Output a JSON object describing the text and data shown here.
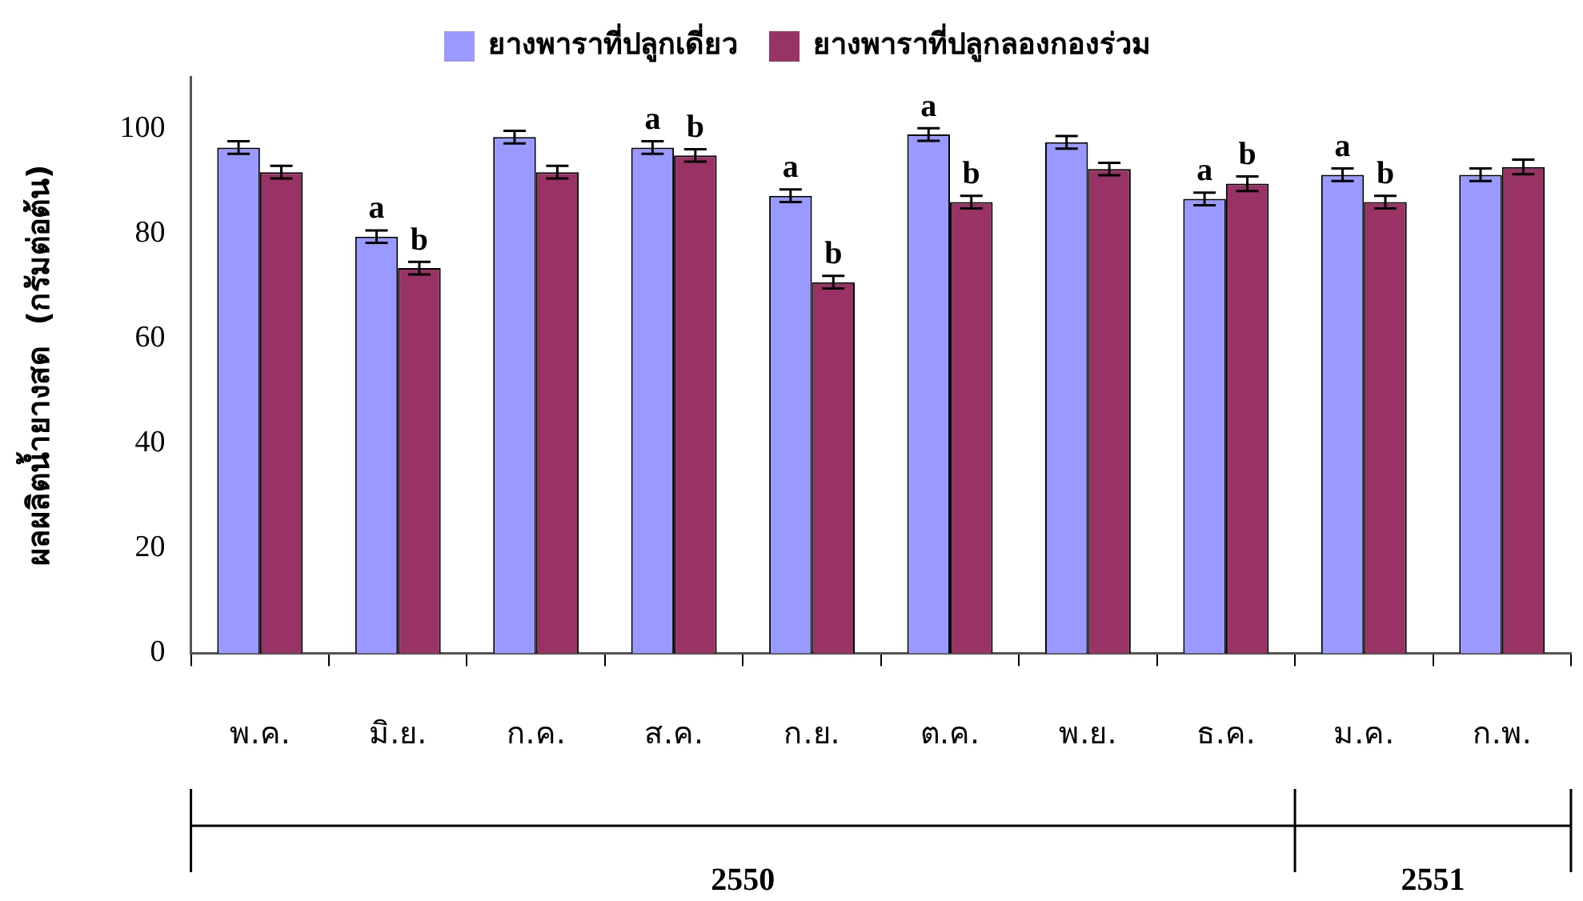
{
  "chart_data": {
    "type": "bar",
    "ylabel": "ผลผลิตน้ำยางสด  (กรัมต่อต้น)",
    "categories": [
      "พ.ค.",
      "มิ.ย.",
      "ก.ค.",
      "ส.ค.",
      "ก.ย.",
      "ต.ค.",
      "พ.ย.",
      "ธ.ค.",
      "ม.ค.",
      "ก.พ."
    ],
    "series": [
      {
        "name": "ยางพาราที่ปลูกเดี่ยว",
        "color": "#9999ff",
        "values": [
          96.5,
          79.5,
          98.5,
          96.5,
          87.3,
          99,
          97.5,
          86.7,
          91.3,
          91.3
        ],
        "errors": [
          1.2,
          1.2,
          1.2,
          1.2,
          1.2,
          1.2,
          1.2,
          1.2,
          1.2,
          1.2
        ],
        "value_labels": [
          null,
          "a",
          null,
          "a",
          "a",
          "a",
          null,
          "a",
          "a",
          null
        ]
      },
      {
        "name": "ยางพาราที่ปลูกลองกองร่วม",
        "color": "#993366",
        "values": [
          91.8,
          73.5,
          91.8,
          95,
          70.8,
          86.1,
          92.4,
          89.6,
          86.1,
          92.8
        ],
        "errors": [
          1.2,
          1.2,
          1.2,
          1.2,
          1.2,
          1.2,
          1.2,
          1.4,
          1.2,
          1.4
        ],
        "value_labels": [
          null,
          "b",
          null,
          "b",
          "b",
          "b",
          null,
          "b",
          "b",
          null
        ]
      }
    ],
    "ylim": [
      0,
      110
    ],
    "yticks": [
      0,
      20,
      40,
      60,
      80,
      100
    ],
    "grid": false,
    "legend": "top",
    "annotations": [
      "2550",
      "2551"
    ]
  }
}
